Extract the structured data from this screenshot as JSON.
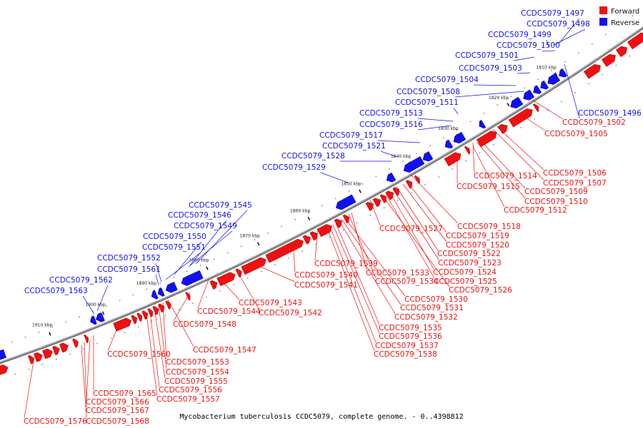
{
  "caption": "Mycobacterium tuberculosis CCDC5079, complete genome. - 0..4398812",
  "colors": {
    "forward": "#ee1111",
    "reverse": "#1111ee",
    "axis": "#777777"
  },
  "legend": [
    {
      "label": "Forward",
      "color": "#ee1111"
    },
    {
      "label": "Reverse",
      "color": "#1111ee"
    }
  ],
  "ticks": [
    "1810 kbp",
    "1820 kbp",
    "1830 kbp",
    "1840 kbp",
    "1850 kbp",
    "1860 kbp",
    "1870 kbp",
    "1880 kbp",
    "1890 kbp",
    "1900 kbp",
    "1910 kbp"
  ],
  "reverse_labels": [
    "CCDC5079_1497",
    "CCDC5079_1498",
    "CCDC5079_1499",
    "CCDC5079_1500",
    "CCDC5079_1501",
    "CCDC5079_1503",
    "CCDC5079_1504",
    "CCDC5079_1508",
    "CCDC5079_1511",
    "CCDC5079_1513",
    "CCDC5079_1516",
    "CCDC5079_1517",
    "CCDC5079_1521",
    "CCDC5079_1528",
    "CCDC5079_1529",
    "CCDC5079_1545",
    "CCDC5079_1546",
    "CCDC5079_1549",
    "CCDC5079_1550",
    "CCDC5079_1551",
    "CCDC5079_1552",
    "CCDC5079_1561",
    "CCDC5079_1562",
    "CCDC5079_1563",
    "CCDC5079_1496"
  ],
  "forward_labels": [
    "CCDC5079_1502",
    "CCDC5079_1505",
    "CCDC5079_1506",
    "CCDC5079_1507",
    "CCDC5079_1514",
    "CCDC5079_1515",
    "CCDC5079_1509",
    "CCDC5079_1510",
    "CCDC5079_1512",
    "CCDC5079_1518",
    "CCDC5079_1527",
    "CCDC5079_1519",
    "CCDC5079_1520",
    "CCDC5079_1522",
    "CCDC5079_1523",
    "CCDC5079_1524",
    "CCDC5079_1539",
    "CCDC5079_1533",
    "CCDC5079_1525",
    "CCDC5079_1540",
    "CCDC5079_1534",
    "CCDC5079_1526",
    "CCDC5079_1541",
    "CCDC5079_1530",
    "CCDC5079_1531",
    "CCDC5079_1532",
    "CCDC5079_1543",
    "CCDC5079_1544",
    "CCDC5079_1542",
    "CCDC5079_1548",
    "CCDC5079_1535",
    "CCDC5079_1536",
    "CCDC5079_1537",
    "CCDC5079_1538",
    "CCDC5079_1547",
    "CCDC5079_1560",
    "CCDC5079_1553",
    "CCDC5079_1554",
    "CCDC5079_1555",
    "CCDC5079_1556",
    "CCDC5079_1557",
    "CCDC5079_1565",
    "CCDC5079_1566",
    "CCDC5079_1567",
    "CCDC5079_1576",
    "CCDC5079_1568"
  ]
}
